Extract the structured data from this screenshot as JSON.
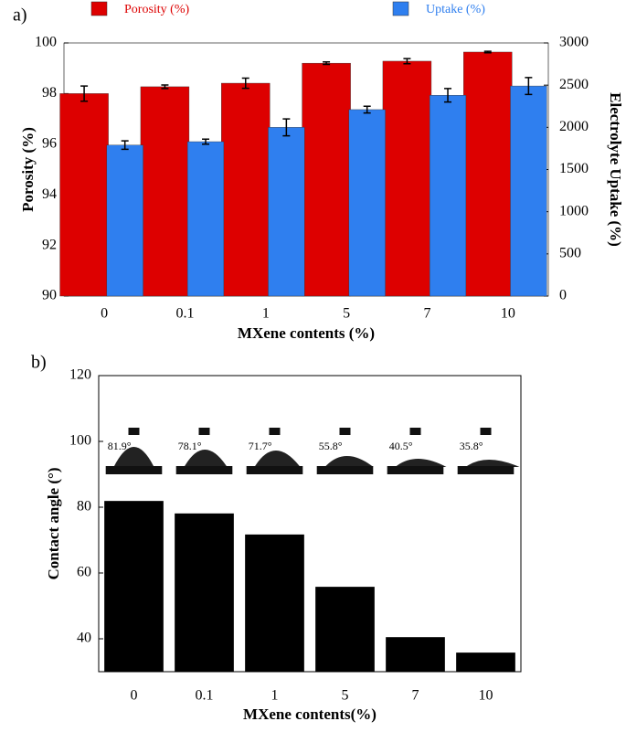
{
  "chart_data": [
    {
      "type": "bar",
      "label": "a)",
      "xlabel": "MXene contents (%)",
      "ylabel": "Porosity (%)",
      "y2label": "Electrolyte Uptake (%)",
      "categories": [
        "0",
        "0.1",
        "1",
        "5",
        "7",
        "10"
      ],
      "series": [
        {
          "name": "Porosity (%)",
          "color": "#dd0000",
          "values": [
            98.0,
            98.27,
            98.41,
            99.2,
            99.28,
            99.64
          ],
          "errors": [
            0.3,
            0.07,
            0.2,
            0.05,
            0.1,
            0.03
          ]
        },
        {
          "name": "Uptake (%)",
          "color": "#2f7fef",
          "axis": "y2",
          "values": [
            1790,
            1830,
            2000,
            2210,
            2380,
            2490
          ],
          "errors": [
            50,
            30,
            100,
            40,
            80,
            100
          ]
        }
      ],
      "ylim": [
        90,
        100
      ],
      "yticks": [
        90,
        92,
        94,
        96,
        98,
        100
      ],
      "y2lim": [
        0,
        3000
      ],
      "y2ticks": [
        0,
        500,
        1000,
        1500,
        2000,
        2500,
        3000
      ],
      "legend": "top",
      "grid": false
    },
    {
      "type": "bar",
      "label": "b)",
      "xlabel": "MXene contents(%)",
      "ylabel": "Contact angle (°)",
      "categories": [
        "0",
        "0.1",
        "1",
        "5",
        "7",
        "10"
      ],
      "values": [
        81.9,
        78.1,
        71.7,
        55.8,
        40.5,
        35.8
      ],
      "value_labels": [
        "81.9°",
        "78.1°",
        "71.7°",
        "55.8°",
        "40.5°",
        "35.8°"
      ],
      "color": "#000000",
      "ylim": [
        30,
        120
      ],
      "yticks": [
        40,
        60,
        80,
        100,
        120
      ],
      "grid": false
    }
  ]
}
